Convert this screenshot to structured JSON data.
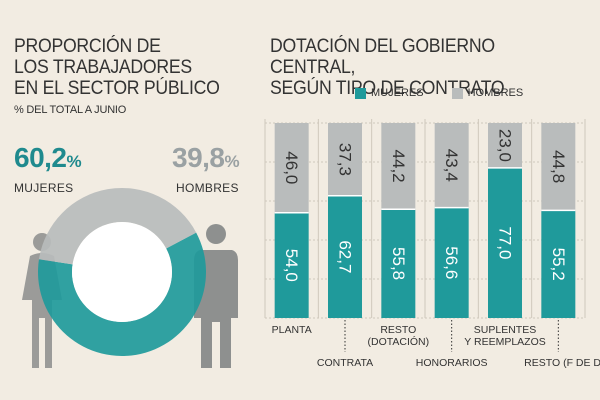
{
  "left": {
    "title_lines": [
      "PROPORCIÓN DE",
      "LOS TRABAJADORES",
      "EN EL SECTOR PÚBLICO"
    ],
    "subtitle": "% DEL TOTAL A JUNIO",
    "women_pct": "60,2",
    "men_pct": "39,8",
    "pct_sign": "%",
    "women_label": "MUJERES",
    "men_label": "HOMBRES"
  },
  "right": {
    "title_lines": [
      "DOTACIÓN DEL GOBIERNO CENTRAL,",
      "SEGÚN TIPO DE CONTRATO"
    ]
  },
  "legend": {
    "women": "MUJERES",
    "men": "HOMBRES"
  },
  "colors": {
    "women": "#1f9a9b",
    "men": "#b9bcbc",
    "background": "#f2ece2"
  },
  "chart_data": [
    {
      "type": "pie",
      "variant": "donut",
      "categories": [
        "MUJERES",
        "HOMBRES"
      ],
      "values": [
        60.2,
        39.8
      ]
    },
    {
      "type": "bar",
      "stacked": true,
      "normalized_percent": true,
      "categories": [
        "PLANTA",
        "CONTRATA",
        "RESTO (DOTACIÓN)",
        "HONORARIOS",
        "SUPLENTES Y REEMPLAZOS",
        "RESTO (F DE D)"
      ],
      "category_label_lines": [
        [
          "PLANTA"
        ],
        [
          "CONTRATA"
        ],
        [
          "RESTO",
          "(DOTACIÓN)"
        ],
        [
          "HONORARIOS"
        ],
        [
          "SUPLENTES",
          "Y REEMPLAZOS"
        ],
        [
          "RESTO (F DE D)"
        ]
      ],
      "series": [
        {
          "name": "MUJERES",
          "values": [
            54.0,
            62.7,
            55.8,
            56.6,
            77.0,
            55.2
          ],
          "labels": [
            "54,0",
            "62,7",
            "55,8",
            "56,6",
            "77,0",
            "55,2"
          ]
        },
        {
          "name": "HOMBRES",
          "values": [
            46.0,
            37.3,
            44.2,
            43.4,
            23.0,
            44.8
          ],
          "labels": [
            "46,0",
            "37,3",
            "44,2",
            "43,4",
            "23,0",
            "44,8"
          ]
        }
      ],
      "ylim": [
        0,
        100
      ],
      "grid": true
    }
  ]
}
